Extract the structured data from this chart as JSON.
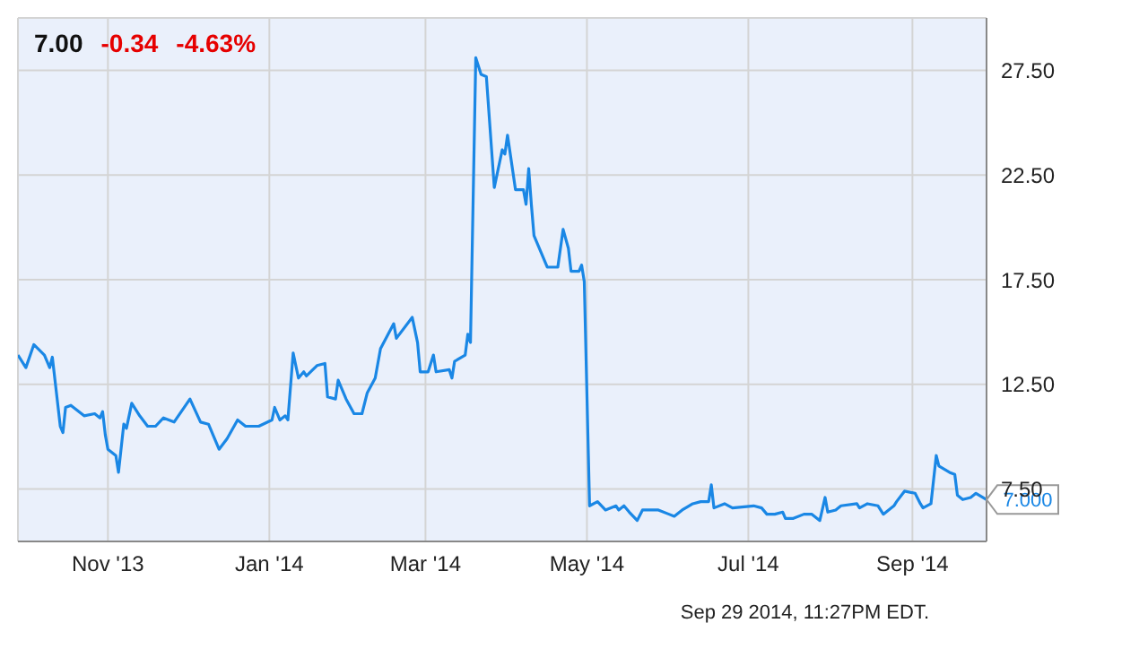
{
  "chart_data": {
    "type": "line",
    "title": "7.00",
    "annotations": [
      "-0.34",
      "-4.63%",
      "Sep 29 2014, 11:27PM EDT.",
      {
        "text": "7.000",
        "x": "2014-09-29",
        "y": 7.0
      }
    ],
    "x": [
      "2013-09-28",
      "2013-10-01",
      "2013-10-04",
      "2013-10-08",
      "2013-10-10",
      "2013-10-11",
      "2013-10-14",
      "2013-10-15",
      "2013-10-16",
      "2013-10-18",
      "2013-10-23",
      "2013-10-27",
      "2013-10-29",
      "2013-10-30",
      "2013-10-31",
      "2013-11-01",
      "2013-11-04",
      "2013-11-05",
      "2013-11-07",
      "2013-11-08",
      "2013-11-10",
      "2013-11-13",
      "2013-11-16",
      "2013-11-19",
      "2013-11-22",
      "2013-11-26",
      "2013-12-02",
      "2013-12-06",
      "2013-12-09",
      "2013-12-13",
      "2013-12-16",
      "2013-12-20",
      "2013-12-23",
      "2013-12-28",
      "2014-01-02",
      "2014-01-03",
      "2014-01-05",
      "2014-01-07",
      "2014-01-08",
      "2014-01-10",
      "2014-01-12",
      "2014-01-14",
      "2014-01-15",
      "2014-01-19",
      "2014-01-22",
      "2014-01-23",
      "2014-01-26",
      "2014-01-27",
      "2014-01-30",
      "2014-02-02",
      "2014-02-05",
      "2014-02-07",
      "2014-02-10",
      "2014-02-12",
      "2014-02-17",
      "2014-02-18",
      "2014-02-24",
      "2014-02-26",
      "2014-02-27",
      "2014-03-02",
      "2014-03-04",
      "2014-03-05",
      "2014-03-10",
      "2014-03-11",
      "2014-03-12",
      "2014-03-16",
      "2014-03-17",
      "2014-03-18",
      "2014-03-20",
      "2014-03-22",
      "2014-03-24",
      "2014-03-27",
      "2014-03-30",
      "2014-03-31",
      "2014-04-01",
      "2014-04-04",
      "2014-04-07",
      "2014-04-08",
      "2014-04-09",
      "2014-04-10",
      "2014-04-11",
      "2014-04-14",
      "2014-04-16",
      "2014-04-20",
      "2014-04-22",
      "2014-04-24",
      "2014-04-25",
      "2014-04-28",
      "2014-04-29",
      "2014-04-30",
      "2014-05-02",
      "2014-05-05",
      "2014-05-08",
      "2014-05-12",
      "2014-05-13",
      "2014-05-15",
      "2014-05-17",
      "2014-05-20",
      "2014-05-22",
      "2014-05-28",
      "2014-06-01",
      "2014-06-03",
      "2014-06-06",
      "2014-06-10",
      "2014-06-13",
      "2014-06-16",
      "2014-06-17",
      "2014-06-18",
      "2014-06-22",
      "2014-06-25",
      "2014-07-03",
      "2014-07-06",
      "2014-07-08",
      "2014-07-11",
      "2014-07-14",
      "2014-07-15",
      "2014-07-18",
      "2014-07-22",
      "2014-07-25",
      "2014-07-28",
      "2014-07-30",
      "2014-07-31",
      "2014-08-03",
      "2014-08-05",
      "2014-08-11",
      "2014-08-12",
      "2014-08-15",
      "2014-08-19",
      "2014-08-21",
      "2014-08-25",
      "2014-08-26",
      "2014-08-29",
      "2014-09-02",
      "2014-09-04",
      "2014-09-05",
      "2014-09-08",
      "2014-09-10",
      "2014-09-11",
      "2014-09-15",
      "2014-09-17",
      "2014-09-18",
      "2014-09-20",
      "2014-09-23",
      "2014-09-25",
      "2014-09-29"
    ],
    "series": [
      {
        "color": "#1a87e5",
        "values": [
          13.9,
          13.3,
          14.4,
          13.9,
          13.3,
          13.8,
          10.5,
          10.2,
          11.4,
          11.5,
          11.0,
          11.1,
          10.9,
          11.2,
          10.1,
          9.4,
          9.1,
          8.3,
          10.6,
          10.4,
          11.6,
          11.0,
          10.5,
          10.5,
          10.9,
          10.7,
          11.8,
          10.7,
          10.6,
          9.4,
          9.9,
          10.8,
          10.5,
          10.5,
          10.8,
          11.4,
          10.8,
          11.0,
          10.8,
          14.0,
          12.8,
          13.1,
          12.9,
          13.4,
          13.5,
          11.9,
          11.8,
          12.7,
          11.8,
          11.1,
          11.1,
          12.1,
          12.8,
          14.2,
          15.4,
          14.7,
          15.7,
          14.5,
          13.1,
          13.1,
          13.9,
          13.1,
          13.2,
          12.8,
          13.6,
          13.9,
          14.9,
          14.5,
          28.1,
          27.3,
          27.2,
          21.9,
          23.7,
          23.5,
          24.4,
          21.8,
          21.8,
          21.1,
          22.8,
          21.1,
          19.6,
          18.7,
          18.1,
          18.1,
          19.9,
          19.0,
          17.9,
          17.9,
          18.2,
          17.4,
          6.7,
          6.9,
          6.5,
          6.7,
          6.5,
          6.7,
          6.4,
          6.0,
          6.5,
          6.5,
          6.3,
          6.2,
          6.5,
          6.8,
          6.9,
          6.9,
          7.7,
          6.6,
          6.8,
          6.6,
          6.7,
          6.6,
          6.3,
          6.3,
          6.4,
          6.1,
          6.1,
          6.3,
          6.3,
          6.0,
          7.1,
          6.4,
          6.5,
          6.7,
          6.8,
          6.6,
          6.8,
          6.7,
          6.3,
          6.7,
          6.9,
          7.4,
          7.3,
          6.8,
          6.6,
          6.8,
          9.1,
          8.6,
          8.3,
          8.2,
          7.2,
          7.0,
          7.1,
          7.3,
          7.0
        ]
      }
    ],
    "xlim": [
      "2013-09-28",
      "2014-09-29"
    ],
    "xticks": [
      {
        "value": "2013-11-01",
        "label": "Nov '13"
      },
      {
        "value": "2014-01-01",
        "label": "Jan '14"
      },
      {
        "value": "2014-03-01",
        "label": "Mar '14"
      },
      {
        "value": "2014-05-01",
        "label": "May '14"
      },
      {
        "value": "2014-07-01",
        "label": "Jul '14"
      },
      {
        "value": "2014-09-01",
        "label": "Sep '14"
      }
    ],
    "ylim": [
      5,
      30
    ],
    "yticks": [
      {
        "value": 7.5,
        "label": "7.50"
      },
      {
        "value": 12.5,
        "label": "12.50"
      },
      {
        "value": 17.5,
        "label": "17.50"
      },
      {
        "value": 22.5,
        "label": "22.50"
      },
      {
        "value": 27.5,
        "label": "27.50"
      }
    ],
    "grid": true,
    "marker": "none",
    "line_style": "solid"
  }
}
